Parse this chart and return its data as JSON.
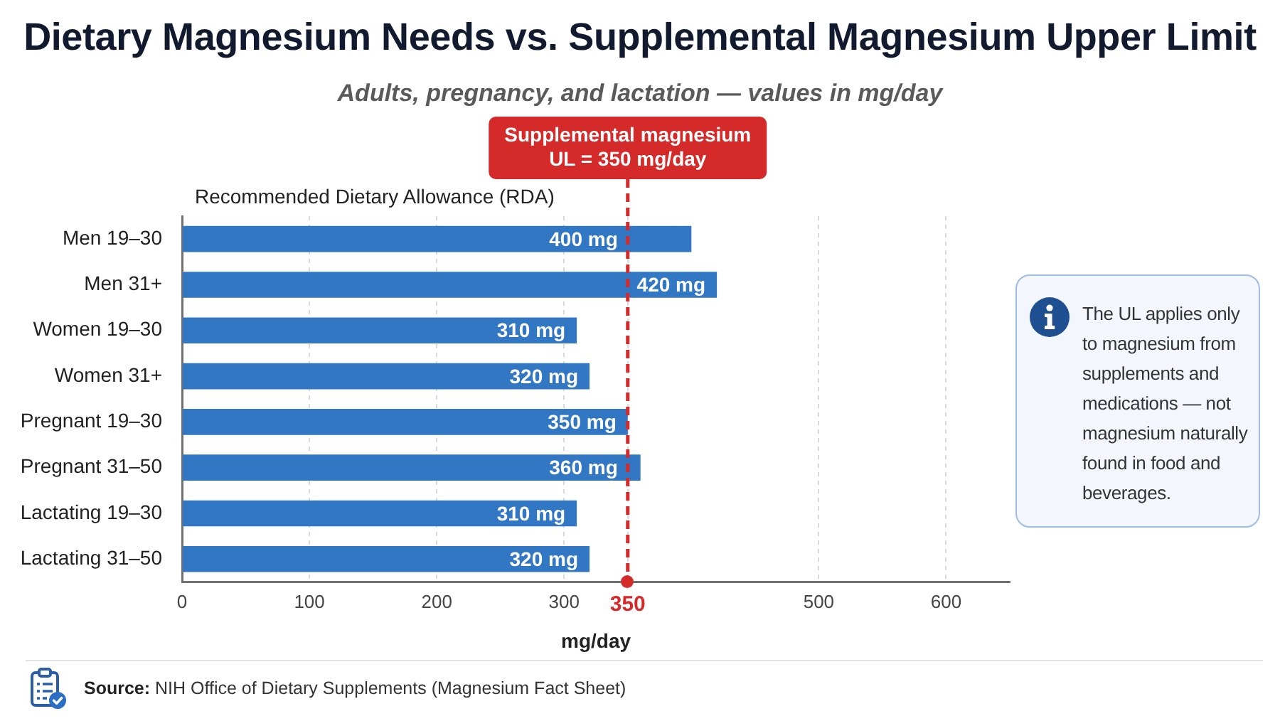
{
  "chart_data": {
    "type": "bar",
    "orientation": "horizontal",
    "title": "Dietary Magnesium Needs vs. Supplemental Magnesium Upper Limit",
    "subtitle": "Adults, pregnancy, and lactation — values in mg/day",
    "xlabel": "mg/day",
    "categories": [
      "Men 19–30",
      "Men 31+",
      "Women 19–30",
      "Women 31+",
      "Pregnant 19–30",
      "Pregnant 31–50",
      "Lactating 19–30",
      "Lactating 31–50"
    ],
    "series": [
      {
        "name": "Recommended Dietary Allowance (RDA)",
        "color": "#3277c4",
        "values": [
          400,
          420,
          310,
          320,
          350,
          360,
          310,
          320
        ],
        "value_labels": [
          "400 mg",
          "420 mg",
          "310 mg",
          "320 mg",
          "350 mg",
          "360 mg",
          "310 mg",
          "320 mg"
        ]
      }
    ],
    "xlim": [
      0,
      650
    ],
    "xticks": [
      0,
      100,
      200,
      300,
      350,
      500,
      600
    ],
    "grid": "x",
    "ref_lines": [
      {
        "axis": "x",
        "value": 350,
        "label": "Supplemental magnesium UL = 350 mg/day",
        "color": "#d42a2a",
        "line_style": "dashed"
      }
    ],
    "annotations": [
      "The UL applies only to magnesium from supplements and medications — not magnesium naturally found in food and beverages.",
      "Source: NIH Office of Dietary Supplements (Magnesium Fact Sheet)"
    ]
  }
}
